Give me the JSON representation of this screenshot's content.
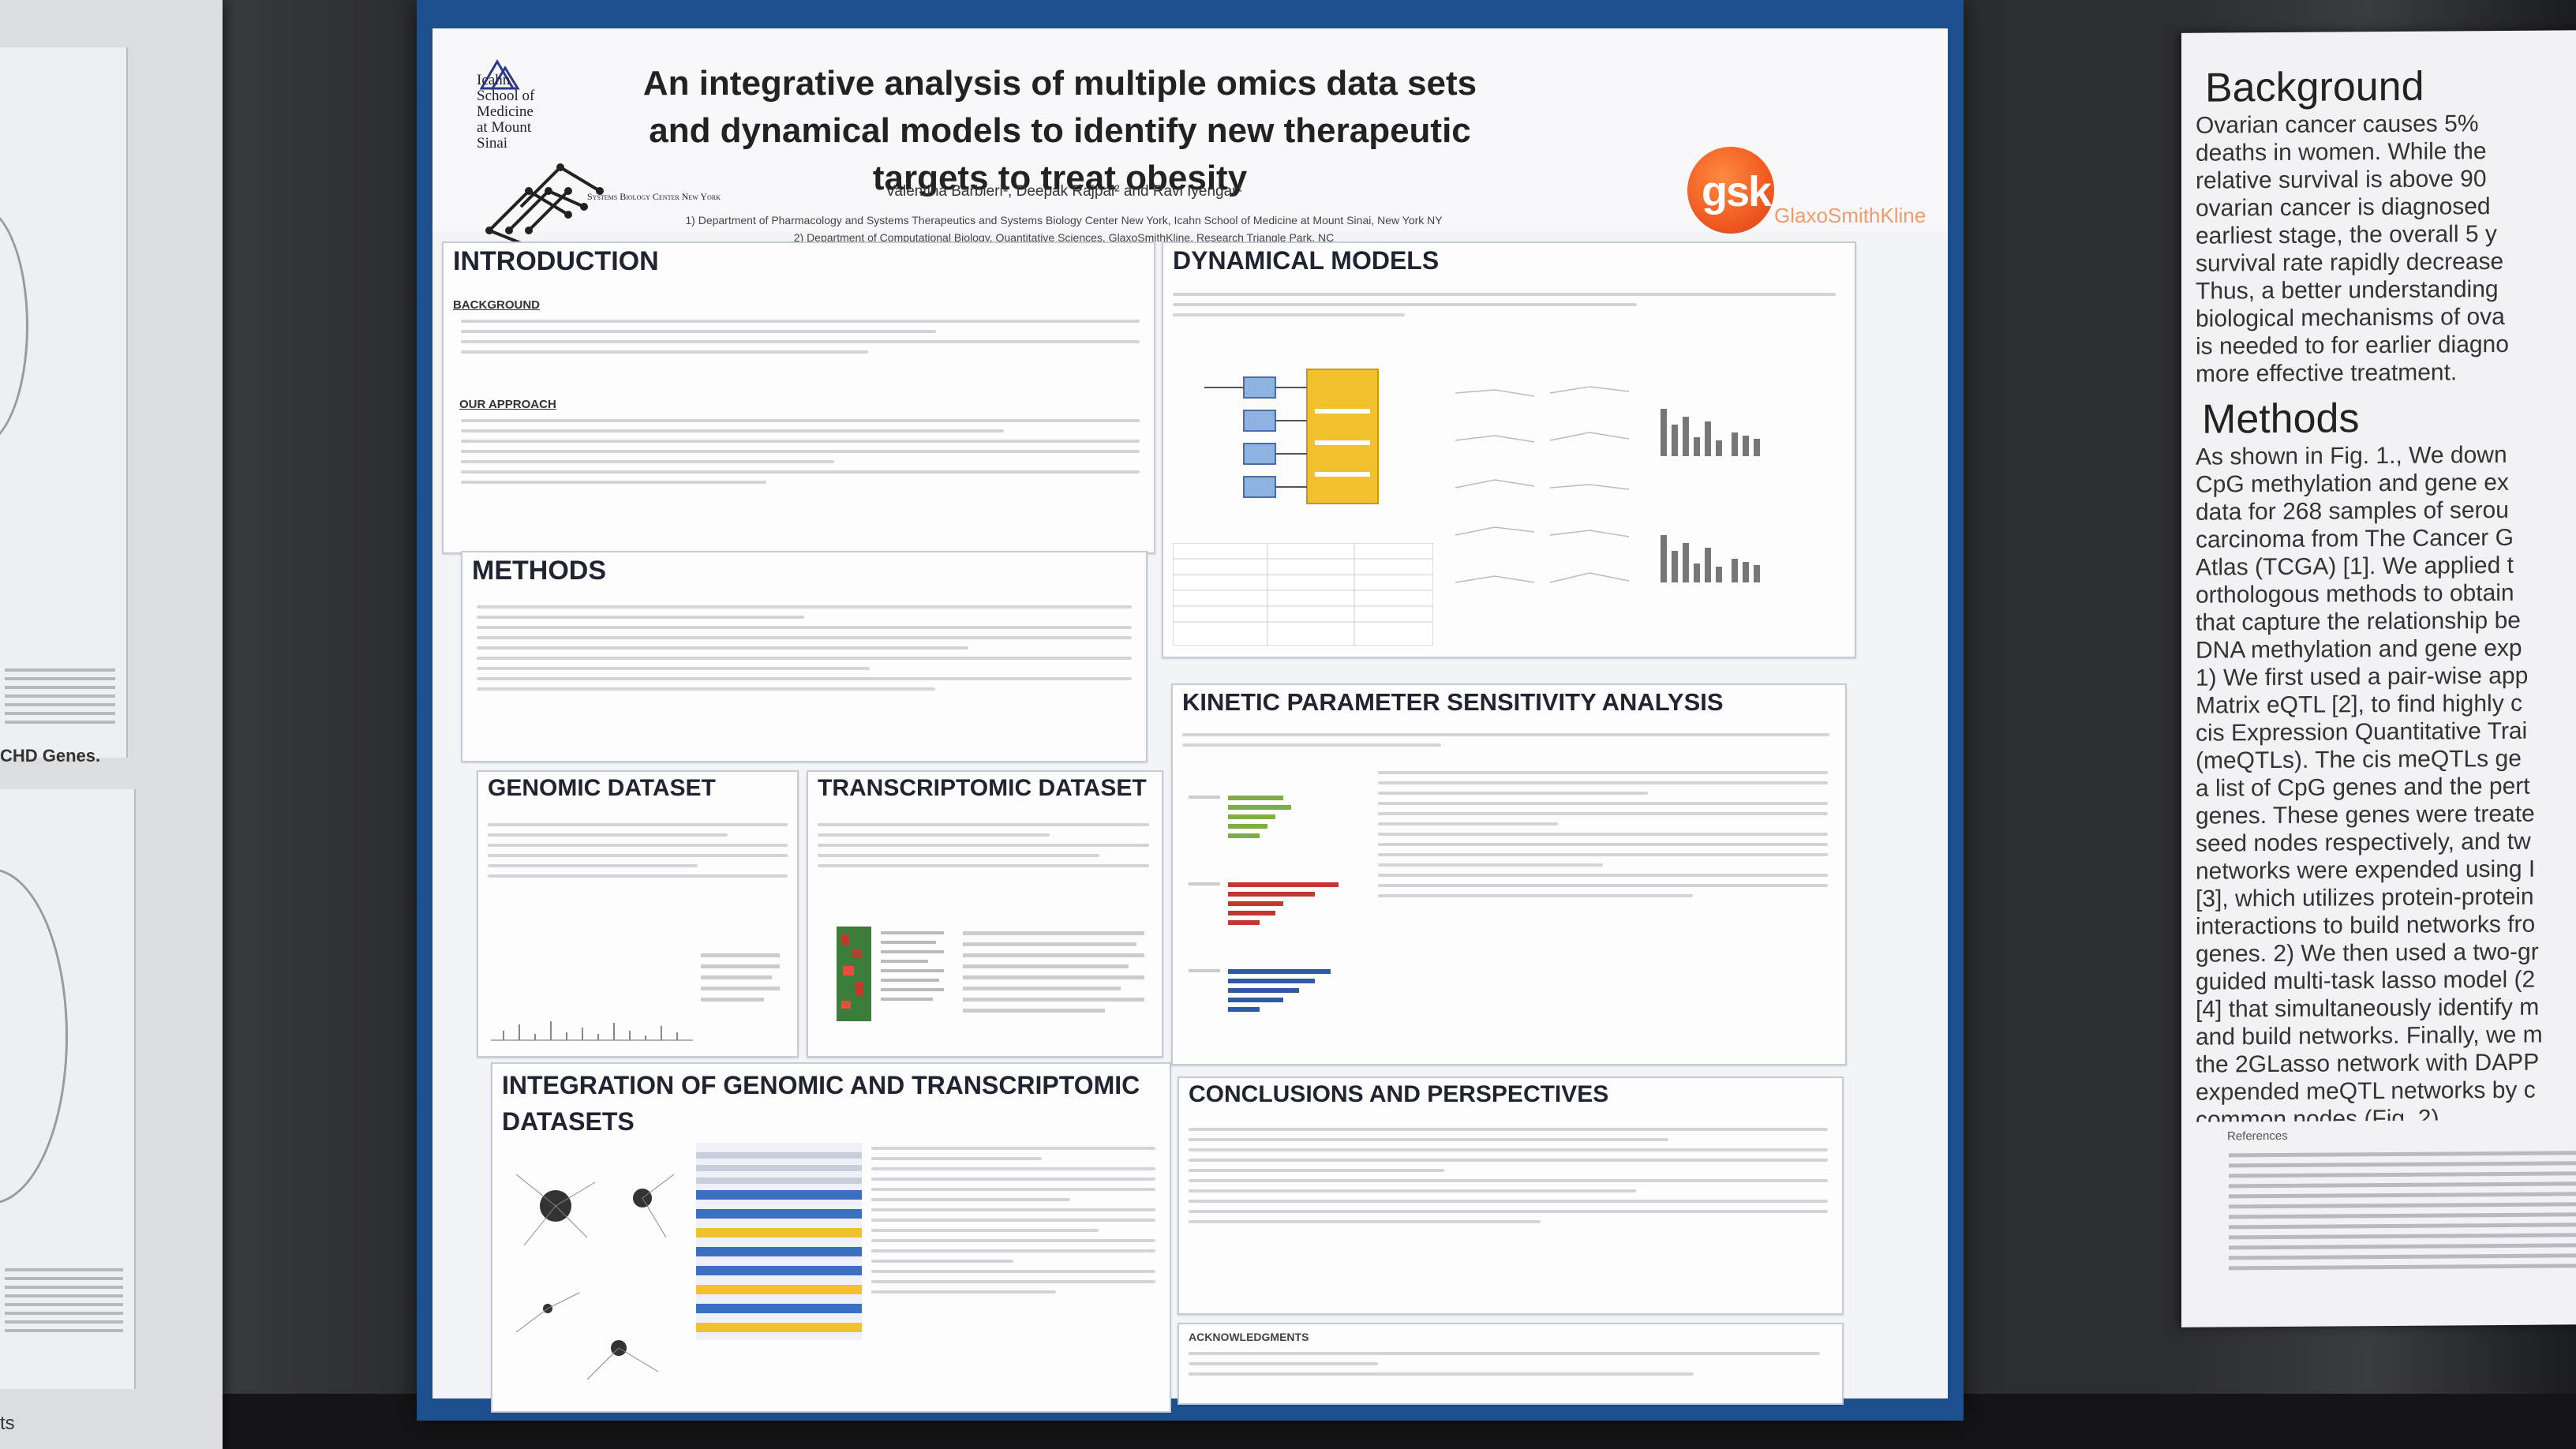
{
  "poster": {
    "institution": "Icahn School of Medicine at Mount Sinai",
    "institution_unit": "Systems Biology Center New York",
    "title": "An integrative analysis of multiple omics data sets and dynamical models to identify new therapeutic targets to treat obesity",
    "authors": "Valentina Barbieri¹, Deepak Rajpal² and Ravi Iyengar¹",
    "affiliations": [
      "1) Department of Pharmacology and Systems Therapeutics and Systems Biology Center New York, Icahn School of Medicine at Mount Sinai, New York NY",
      "2) Department of Computational Biology, Quantitative Sciences, GlaxoSmithKline, Research Triangle Park, NC"
    ],
    "sponsor_logo": "gsk",
    "sponsor_name": "GlaxoSmithKline",
    "sections": {
      "introduction": {
        "title": "INTRODUCTION",
        "background_heading": "BACKGROUND",
        "approach_heading": "OUR APPROACH"
      },
      "methods": {
        "title": "METHODS"
      },
      "genomic": {
        "title": "GENOMIC DATASET"
      },
      "transcriptomic": {
        "title": "TRANSCRIPTOMIC DATASET"
      },
      "integration": {
        "title": "INTEGRATION OF GENOMIC AND TRANSCRIPTOMIC DATASETS"
      },
      "dynamical": {
        "title": "DYNAMICAL MODELS"
      },
      "kinetic": {
        "title": "KINETIC PARAMETER SENSITIVITY ANALYSIS"
      },
      "conclusions": {
        "title": "CONCLUSIONS AND PERSPECTIVES"
      },
      "acknowledgments": {
        "title": "ACKNOWLEDGMENTS"
      }
    }
  },
  "right_poster": {
    "background_heading": "Background",
    "background_text": "Ovarian cancer causes 5%\ndeaths in women. While the\nrelative survival is above 90\novarian cancer is diagnosed\nearliest stage, the overall 5 y\nsurvival rate rapidly decrease\nThus, a better understanding\nbiological mechanisms of ova\nis needed to for earlier diagno\nmore effective treatment.",
    "methods_heading": "Methods",
    "methods_text": "As shown in Fig. 1., We down\nCpG methylation and gene ex\ndata for 268 samples of serou\ncarcinoma from The Cancer G\nAtlas (TCGA) [1]. We applied t\northologous methods to obtain\nthat capture the relationship be\nDNA methylation and gene exp\n1) We first used a pair-wise app\nMatrix eQTL [2], to find highly c\ncis Expression Quantitative Trai\n(meQTLs). The cis meQTLs ge\na list of CpG genes and the pert\ngenes. These genes were treate\nseed nodes respectively, and tw\nnetworks were expended using I\n[3], which utilizes protein-protein\ninteractions to build networks fro\ngenes. 2) We then used a two-gr\nguided multi-task lasso model (2\n[4] that simultaneously identify m\nand build networks. Finally, we m\nthe 2GLasso network with DAPP\nexpended meQTL networks by c\ncommon nodes (Fig. 2).",
    "references_heading": "References"
  },
  "left_poster": {
    "heading": "CHD Genes.",
    "bottom_text": "ts"
  },
  "colors": {
    "poster_border": "#1d4f8f",
    "gsk_orange": "#f05a22",
    "wall": "#2c2d30"
  }
}
